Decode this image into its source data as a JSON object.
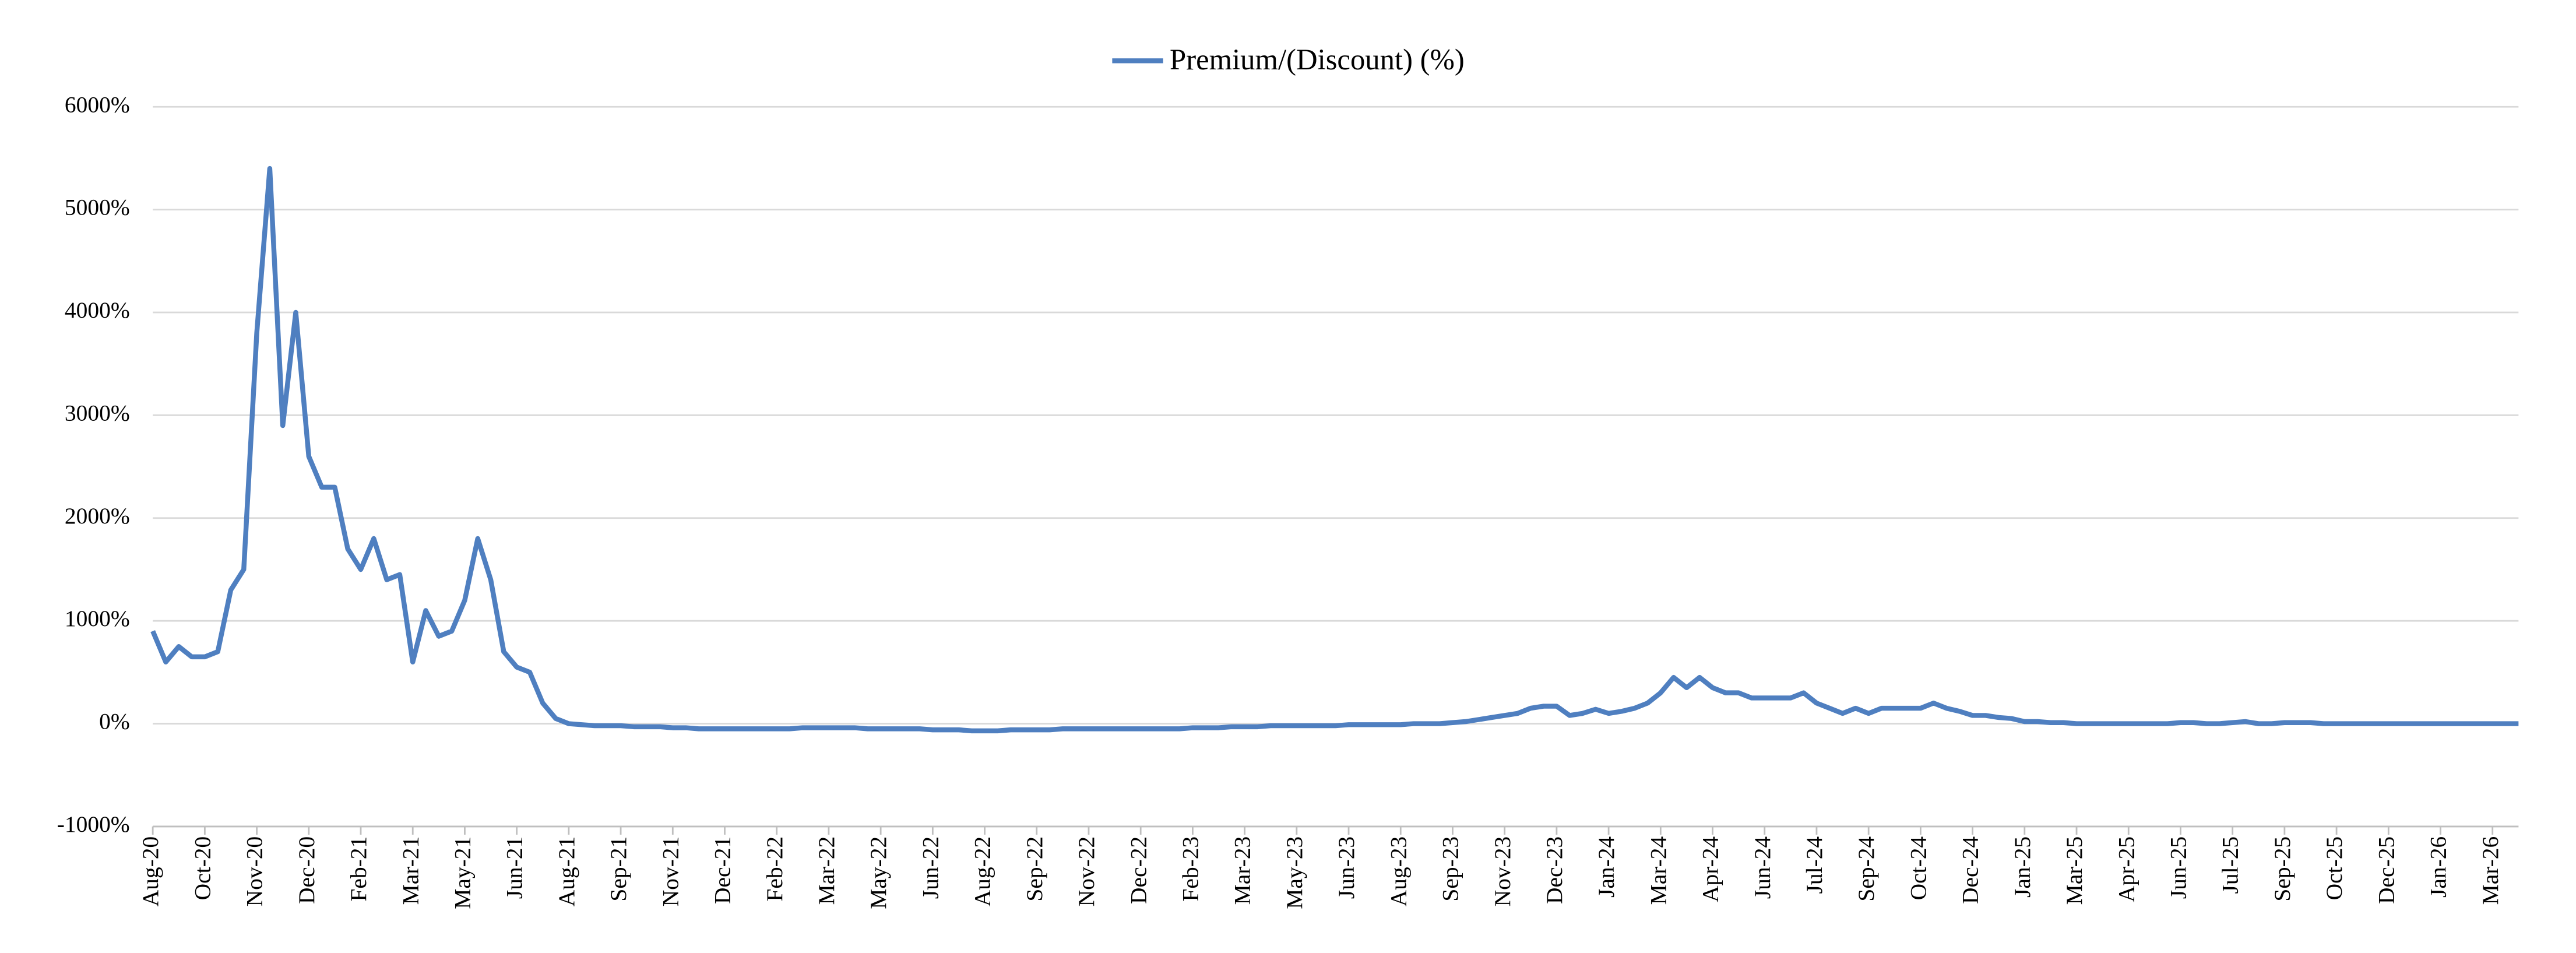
{
  "chart_data": {
    "type": "line",
    "categories": [
      "Aug-20",
      null,
      null,
      null,
      "Oct-20",
      null,
      null,
      null,
      "Nov-20",
      null,
      null,
      null,
      "Dec-20",
      null,
      null,
      null,
      "Feb-21",
      null,
      null,
      null,
      "Mar-21",
      null,
      null,
      null,
      "May-21",
      null,
      null,
      null,
      "Jun-21",
      null,
      null,
      null,
      "Aug-21",
      null,
      null,
      null,
      "Sep-21",
      null,
      null,
      null,
      "Nov-21",
      null,
      null,
      null,
      "Dec-21",
      null,
      null,
      null,
      "Feb-22",
      null,
      null,
      null,
      "Mar-22",
      null,
      null,
      null,
      "May-22",
      null,
      null,
      null,
      "Jun-22",
      null,
      null,
      null,
      "Aug-22",
      null,
      null,
      null,
      "Sep-22",
      null,
      null,
      null,
      "Nov-22",
      null,
      null,
      null,
      "Dec-22",
      null,
      null,
      null,
      "Feb-23",
      null,
      null,
      null,
      "Mar-23",
      null,
      null,
      null,
      "May-23",
      null,
      null,
      null,
      "Jun-23",
      null,
      null,
      null,
      "Aug-23",
      null,
      null,
      null,
      "Sep-23",
      null,
      null,
      null,
      "Nov-23",
      null,
      null,
      null,
      "Dec-23",
      null,
      null,
      null,
      "Jan-24",
      null,
      null,
      null,
      "Mar-24",
      null,
      null,
      null,
      "Apr-24",
      null,
      null,
      null,
      "Jun-24",
      null,
      null,
      null,
      "Jul-24",
      null,
      null,
      null,
      "Sep-24",
      null,
      null,
      null,
      "Oct-24",
      null,
      null,
      null,
      "Dec-24",
      null,
      null,
      null,
      "Jan-25",
      null,
      null,
      null,
      "Mar-25",
      null,
      null,
      null,
      "Apr-25",
      null,
      null,
      null,
      "Jun-25",
      null,
      null,
      null,
      "Jul-25",
      null,
      null,
      null,
      "Sep-25",
      null,
      null,
      null,
      "Oct-25",
      null,
      null,
      null,
      "Dec-25",
      null,
      null,
      null,
      "Jan-26",
      null,
      null,
      null,
      "Mar-26",
      null,
      null
    ],
    "series": [
      {
        "name": "Premium/(Discount) (%)",
        "color": "#4f7fc0",
        "values": [
          900,
          600,
          750,
          650,
          650,
          700,
          1300,
          1500,
          3800,
          5400,
          2900,
          4000,
          2600,
          2300,
          2300,
          1700,
          1500,
          1800,
          1400,
          1450,
          600,
          1100,
          850,
          900,
          1200,
          1800,
          1400,
          700,
          550,
          500,
          200,
          50,
          0,
          -10,
          -20,
          -20,
          -20,
          -30,
          -30,
          -30,
          -40,
          -40,
          -50,
          -50,
          -50,
          -50,
          -50,
          -50,
          -50,
          -50,
          -40,
          -40,
          -40,
          -40,
          -40,
          -50,
          -50,
          -50,
          -50,
          -50,
          -60,
          -60,
          -60,
          -70,
          -70,
          -70,
          -60,
          -60,
          -60,
          -60,
          -50,
          -50,
          -50,
          -50,
          -50,
          -50,
          -50,
          -50,
          -50,
          -50,
          -40,
          -40,
          -40,
          -30,
          -30,
          -30,
          -20,
          -20,
          -20,
          -20,
          -20,
          -20,
          -10,
          -10,
          -10,
          -10,
          -10,
          0,
          0,
          0,
          10,
          20,
          40,
          60,
          80,
          100,
          150,
          170,
          170,
          80,
          100,
          140,
          100,
          120,
          150,
          200,
          300,
          450,
          350,
          450,
          350,
          300,
          300,
          250,
          250,
          250,
          250,
          300,
          200,
          150,
          100,
          150,
          100,
          150,
          150,
          150,
          150,
          200,
          150,
          120,
          80,
          80,
          60,
          50,
          20,
          20,
          10,
          10,
          0,
          0,
          0,
          0,
          0,
          0,
          0,
          0,
          10,
          10,
          0,
          0,
          10,
          20,
          0,
          0,
          10,
          10,
          10,
          0,
          0,
          0,
          0,
          0,
          0,
          0,
          0,
          0,
          0,
          0,
          0,
          0,
          0,
          0,
          0
        ]
      }
    ],
    "ylim": [
      -1000,
      6000
    ],
    "yticks": [
      {
        "value": -1000,
        "label": "-1000%"
      },
      {
        "value": 0,
        "label": "0%"
      },
      {
        "value": 1000,
        "label": "1000%"
      },
      {
        "value": 2000,
        "label": "2000%"
      },
      {
        "value": 3000,
        "label": "3000%"
      },
      {
        "value": 4000,
        "label": "4000%"
      },
      {
        "value": 5000,
        "label": "5000%"
      },
      {
        "value": 6000,
        "label": "6000%"
      }
    ],
    "grid": true,
    "legend": "top"
  }
}
